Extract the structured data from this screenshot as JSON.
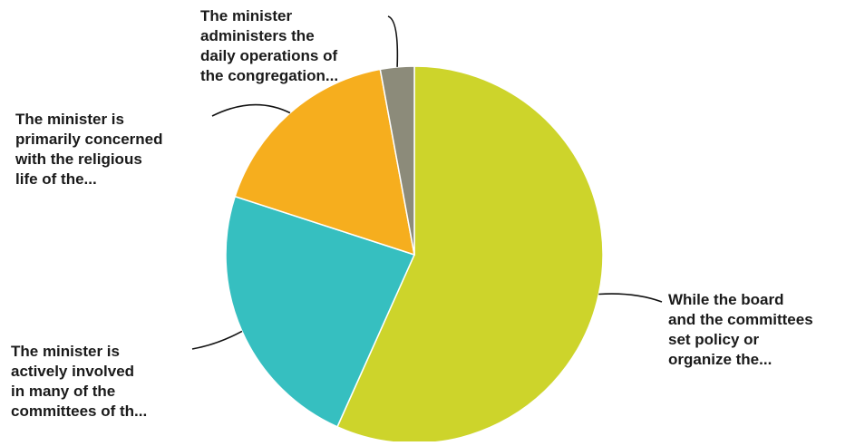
{
  "chart_data": {
    "type": "pie",
    "slices": [
      {
        "label_lines": [
          "While the board",
          "and the committees",
          "set policy or",
          "organize the..."
        ],
        "value": 56.7,
        "color": "#cdd42b"
      },
      {
        "label_lines": [
          "The minister is",
          "actively involved",
          "in many of the",
          "committees of th..."
        ],
        "value": 23.3,
        "color": "#36bfc0"
      },
      {
        "label_lines": [
          "The minister is",
          "primarily concerned",
          "with the religious",
          "life of the..."
        ],
        "value": 17.1,
        "color": "#f6ae1e"
      },
      {
        "label_lines": [
          "The minister",
          "administers the",
          "daily operations of",
          "the congregation..."
        ],
        "value": 2.9,
        "color": "#8c8b7a"
      }
    ]
  }
}
